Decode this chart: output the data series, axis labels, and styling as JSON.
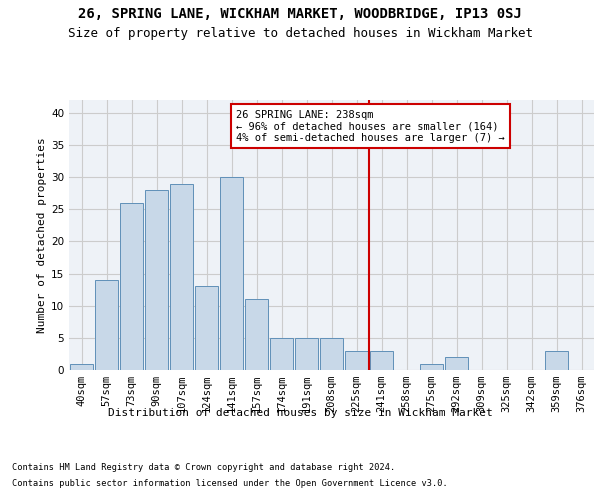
{
  "title": "26, SPRING LANE, WICKHAM MARKET, WOODBRIDGE, IP13 0SJ",
  "subtitle": "Size of property relative to detached houses in Wickham Market",
  "xlabel": "Distribution of detached houses by size in Wickham Market",
  "ylabel": "Number of detached properties",
  "footnote1": "Contains HM Land Registry data © Crown copyright and database right 2024.",
  "footnote2": "Contains public sector information licensed under the Open Government Licence v3.0.",
  "bar_labels": [
    "40sqm",
    "57sqm",
    "73sqm",
    "90sqm",
    "107sqm",
    "124sqm",
    "141sqm",
    "157sqm",
    "174sqm",
    "191sqm",
    "208sqm",
    "225sqm",
    "241sqm",
    "258sqm",
    "275sqm",
    "292sqm",
    "309sqm",
    "325sqm",
    "342sqm",
    "359sqm",
    "376sqm"
  ],
  "bar_values": [
    1,
    14,
    26,
    28,
    29,
    13,
    30,
    11,
    5,
    5,
    5,
    3,
    3,
    0,
    1,
    2,
    0,
    0,
    0,
    3,
    0
  ],
  "bar_color": "#c8d8e8",
  "bar_edge_color": "#6090b8",
  "grid_color": "#cccccc",
  "background_color": "#eef2f7",
  "vline_x_index": 12,
  "vline_color": "#cc0000",
  "annotation_text": "26 SPRING LANE: 238sqm\n← 96% of detached houses are smaller (164)\n4% of semi-detached houses are larger (7) →",
  "annotation_box_color": "#cc0000",
  "ylim": [
    0,
    42
  ],
  "yticks": [
    0,
    5,
    10,
    15,
    20,
    25,
    30,
    35,
    40
  ],
  "title_fontsize": 10,
  "subtitle_fontsize": 9,
  "axis_label_fontsize": 8,
  "tick_fontsize": 7.5,
  "footnote_fontsize": 6.2
}
